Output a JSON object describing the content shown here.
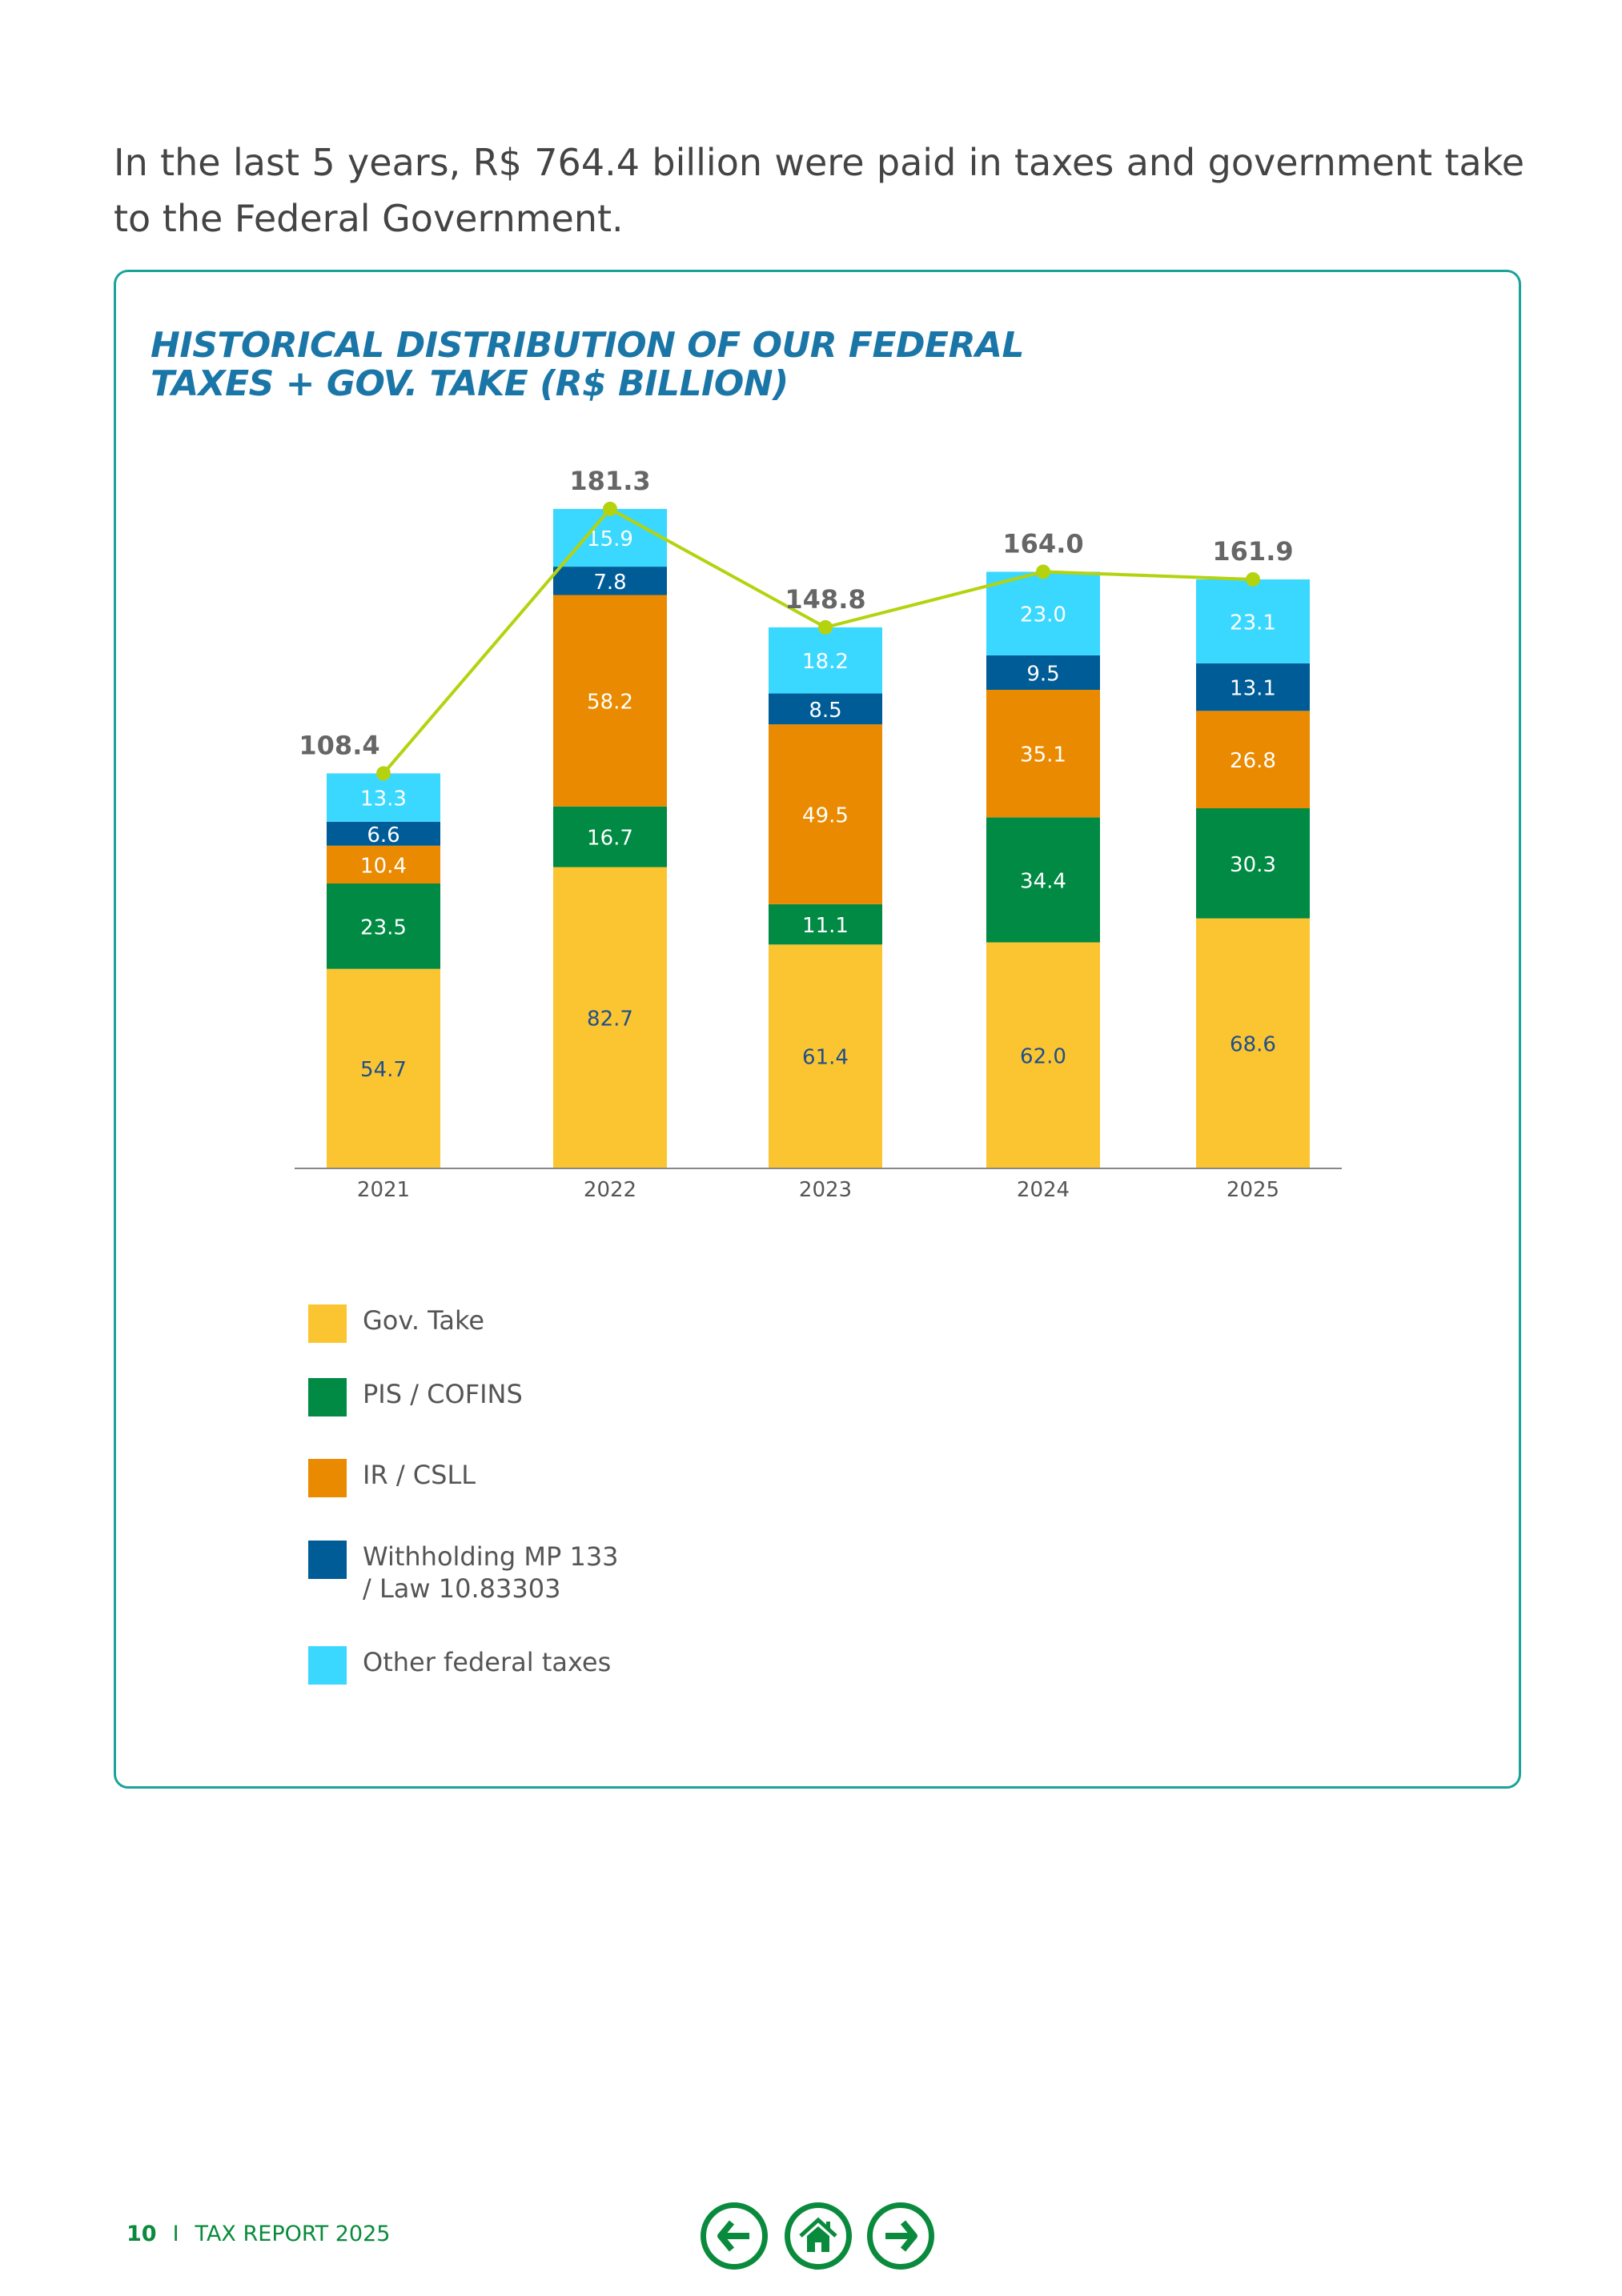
{
  "intro_text": "In the last 5 years, R$ 764.4 billion were paid in taxes and government take to the Federal Government.",
  "chart_data": {
    "type": "bar",
    "stacked": true,
    "title": "HISTORICAL DISTRIBUTION OF OUR FEDERAL TAXES + GOV. TAKE (R$ BILLION)",
    "categories": [
      "2021",
      "2022",
      "2023",
      "2024",
      "2025"
    ],
    "series": [
      {
        "name": "Gov. Take",
        "color": "#fbc531",
        "label_color": "#1f4f8a",
        "values": [
          54.7,
          82.7,
          61.4,
          62.0,
          68.6
        ]
      },
      {
        "name": "PIS / COFINS",
        "color": "#008a44",
        "label_color": "#ffffff",
        "values": [
          23.5,
          16.7,
          11.1,
          34.4,
          30.3
        ]
      },
      {
        "name": "IR / CSLL",
        "color": "#ea8a00",
        "label_color": "#ffffff",
        "values": [
          10.4,
          58.2,
          49.5,
          35.1,
          26.8
        ]
      },
      {
        "name": "Withholding MP 133\n/ Law 10.83303",
        "color": "#005c97",
        "label_color": "#ffffff",
        "values": [
          6.6,
          7.8,
          8.5,
          9.5,
          13.1
        ]
      },
      {
        "name": "Other federal taxes",
        "color": "#3ad8ff",
        "label_color": "#ffffff",
        "values": [
          13.3,
          15.9,
          18.2,
          23.0,
          23.1
        ]
      }
    ],
    "totals": {
      "values": [
        108.4,
        181.3,
        148.8,
        164.0,
        161.9
      ],
      "line_color": "#b5d20e",
      "label_color": "#666666"
    },
    "legend_position": "bottom-left",
    "grid": false
  },
  "footer": {
    "page_number": "10",
    "separator": "I",
    "report_title": "TAX REPORT 2025",
    "brand_color": "#0a8a3c"
  },
  "nav": {
    "icons": [
      "arrow-left-icon",
      "home-icon",
      "arrow-right-icon"
    ]
  }
}
